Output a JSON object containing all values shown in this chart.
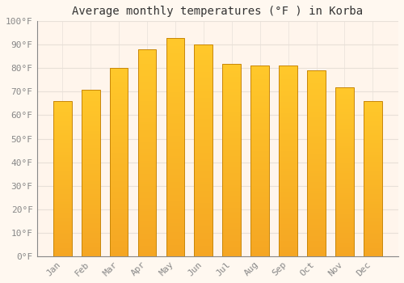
{
  "title": "Average monthly temperatures (°F ) in Korba",
  "months": [
    "Jan",
    "Feb",
    "Mar",
    "Apr",
    "May",
    "Jun",
    "Jul",
    "Aug",
    "Sep",
    "Oct",
    "Nov",
    "Dec"
  ],
  "values": [
    66,
    71,
    80,
    88,
    93,
    90,
    82,
    81,
    81,
    79,
    72,
    66
  ],
  "bar_color_top": "#FFC82A",
  "bar_color_bottom": "#F5A623",
  "bar_edge_color": "#C8860A",
  "background_color": "#FFF8F0",
  "plot_bg_color": "#FFF5EC",
  "grid_color": "#E8E0D8",
  "ylim": [
    0,
    100
  ],
  "yticks": [
    0,
    10,
    20,
    30,
    40,
    50,
    60,
    70,
    80,
    90,
    100
  ],
  "title_fontsize": 10,
  "tick_fontsize": 8,
  "tick_color": "#888888",
  "title_color": "#333333",
  "font_family": "monospace",
  "bar_width": 0.65
}
